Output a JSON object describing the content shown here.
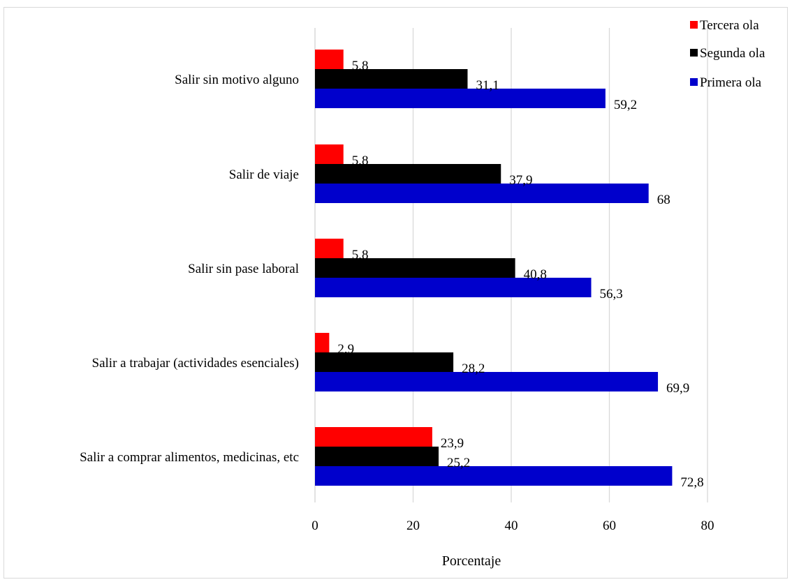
{
  "chart_data": {
    "type": "bar",
    "orientation": "horizontal",
    "categories": [
      "Salir sin motivo alguno",
      "Salir de viaje",
      "Salir sin pase laboral",
      "Salir a trabajar (actividades esenciales)",
      "Salir a comprar alimentos, medicinas, etc"
    ],
    "series": [
      {
        "name": "Tercera ola",
        "color": "#ff0000",
        "values": [
          5.8,
          5.8,
          5.8,
          2.9,
          23.9
        ],
        "labels": [
          "5,8",
          "5,8",
          "5,8",
          "2,9",
          "23,9"
        ]
      },
      {
        "name": "Segunda ola",
        "color": "#000000",
        "values": [
          31.1,
          37.9,
          40.8,
          28.2,
          25.2
        ],
        "labels": [
          "31,1",
          "37,9",
          "40,8",
          "28,2",
          "25,2"
        ]
      },
      {
        "name": "Primera ola",
        "color": "#0000cc",
        "values": [
          59.2,
          68,
          56.3,
          69.9,
          72.8
        ],
        "labels": [
          "59,2",
          "68",
          "56,3",
          "69,9",
          "72,8"
        ]
      }
    ],
    "xlabel": "Porcentaje",
    "ylabel": "",
    "xlim": [
      0,
      80
    ],
    "xticks": [
      0,
      20,
      40,
      60,
      80
    ],
    "xtick_labels": [
      "0",
      "20",
      "40",
      "60",
      "80"
    ],
    "grid": "vertical",
    "legend_position": "top-right"
  }
}
